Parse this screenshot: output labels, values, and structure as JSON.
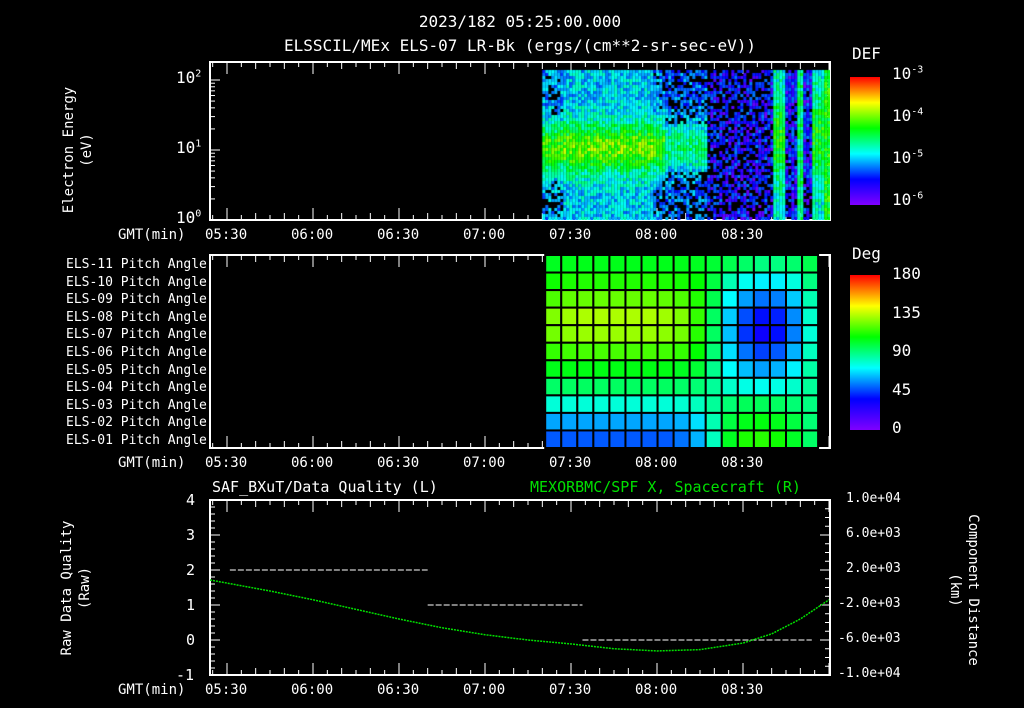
{
  "header": {
    "timestamp": "2023/182 05:25:00.000",
    "subtitle": "ELSSCIL/MEx ELS-07 LR-Bk  (ergs/(cm**2-sr-sec-eV))"
  },
  "time_axis": {
    "label": "GMT(min)",
    "ticks": [
      "05:30",
      "06:00",
      "06:30",
      "07:00",
      "07:30",
      "08:00",
      "08:30"
    ],
    "tick_minutes": [
      330,
      360,
      390,
      420,
      450,
      480,
      510
    ],
    "range_minutes": [
      324,
      540
    ]
  },
  "colors": {
    "axis": "#ffffff",
    "green_series": "#00e000",
    "quality_series": "#ffffff"
  },
  "chart_data": [
    {
      "type": "heatmap",
      "name": "energy-spectrogram",
      "title": "ELSSCIL/MEx ELS-07 LR-Bk  (ergs/(cm**2-sr-sec-eV))",
      "ylabel": [
        "Electron Energy",
        "(eV)"
      ],
      "yscale": "log",
      "ylim": [
        1,
        186
      ],
      "yticks": [
        {
          "base": "10",
          "exp": "0"
        },
        {
          "base": "10",
          "exp": "1"
        },
        {
          "base": "10",
          "exp": "2"
        }
      ],
      "data_start_minute": 440,
      "colorbar": {
        "title": "DEF",
        "ticks": [
          {
            "base": "10",
            "exp": "-3"
          },
          {
            "base": "10",
            "exp": "-4"
          },
          {
            "base": "10",
            "exp": "-5"
          },
          {
            "base": "10",
            "exp": "-6"
          }
        ],
        "range_log": [
          -6.3,
          -3
        ]
      }
    },
    {
      "type": "heatmap",
      "name": "pitch-angle",
      "rows": [
        "ELS-11 Pitch Angle",
        "ELS-10 Pitch Angle",
        "ELS-09 Pitch Angle",
        "ELS-08 Pitch Angle",
        "ELS-07 Pitch Angle",
        "ELS-06 Pitch Angle",
        "ELS-05 Pitch Angle",
        "ELS-04 Pitch Angle",
        "ELS-03 Pitch Angle",
        "ELS-02 Pitch Angle",
        "ELS-01 Pitch Angle"
      ],
      "column_start_minute": 441,
      "column_width_minutes": 5.6,
      "values": [
        [
          95,
          96,
          96,
          96,
          96,
          96,
          96,
          96,
          96,
          95,
          92,
          88,
          84,
          80,
          80,
          83,
          88
        ],
        [
          102,
          104,
          105,
          105,
          105,
          105,
          105,
          104,
          103,
          100,
          90,
          72,
          62,
          58,
          58,
          65,
          80
        ],
        [
          112,
          115,
          116,
          116,
          116,
          116,
          116,
          115,
          112,
          105,
          88,
          60,
          45,
          38,
          40,
          52,
          72
        ],
        [
          120,
          125,
          127,
          127,
          127,
          127,
          127,
          125,
          120,
          108,
          85,
          52,
          32,
          22,
          25,
          42,
          68
        ],
        [
          118,
          122,
          124,
          124,
          124,
          124,
          124,
          122,
          118,
          106,
          85,
          50,
          28,
          18,
          22,
          40,
          66
        ],
        [
          108,
          110,
          111,
          111,
          111,
          111,
          111,
          110,
          108,
          100,
          82,
          55,
          38,
          30,
          34,
          48,
          70
        ],
        [
          96,
          97,
          97,
          97,
          97,
          97,
          97,
          97,
          95,
          92,
          78,
          60,
          50,
          45,
          48,
          58,
          74
        ],
        [
          84,
          85,
          85,
          85,
          85,
          85,
          85,
          85,
          84,
          82,
          76,
          68,
          64,
          62,
          64,
          68,
          76
        ],
        [
          66,
          66,
          66,
          66,
          66,
          66,
          66,
          66,
          67,
          70,
          76,
          82,
          86,
          86,
          85,
          82,
          80
        ],
        [
          46,
          46,
          46,
          46,
          46,
          46,
          46,
          46,
          48,
          55,
          72,
          90,
          96,
          98,
          96,
          90,
          82
        ],
        [
          34,
          34,
          34,
          34,
          34,
          34,
          34,
          34,
          38,
          48,
          70,
          95,
          104,
          106,
          102,
          94,
          84
        ]
      ],
      "colorbar": {
        "title": "Deg",
        "ticks": [
          "180",
          "135",
          "90",
          "45",
          "0"
        ],
        "range": [
          0,
          180
        ]
      }
    },
    {
      "type": "line",
      "name": "data-quality-and-position",
      "left_title": "SAF_BXuT/Data Quality (L)",
      "right_title": "MEXORBMC/SPF X, Spacecraft (R)",
      "ylabel_left": [
        "Raw Data Quality",
        "(Raw)"
      ],
      "ylabel_right": [
        "Component Distance",
        "(km)"
      ],
      "ylim_left": [
        -1,
        4
      ],
      "yticks_left": [
        "4",
        "3",
        "2",
        "1",
        "0",
        "-1"
      ],
      "ylim_right": [
        -10000,
        10000
      ],
      "yticks_right": [
        "1.0e+04",
        "6.0e+03",
        "2.0e+03",
        "-2.0e+03",
        "-6.0e+03",
        "-1.0e+04"
      ],
      "series": [
        {
          "name": "Data Quality",
          "axis": "left",
          "style": "dashed",
          "segments": [
            {
              "x_minutes": [
                331,
                400
              ],
              "y": 2
            },
            {
              "x_minutes": [
                400,
                454
              ],
              "y": 1
            },
            {
              "x_minutes": [
                454,
                534
              ],
              "y": 0
            }
          ]
        },
        {
          "name": "SPF X",
          "axis": "right",
          "style": "dotted",
          "x_minutes": [
            324,
            345,
            360,
            375,
            390,
            405,
            420,
            435,
            450,
            465,
            480,
            495,
            510,
            520,
            530,
            540
          ],
          "y": [
            860,
            -400,
            -1400,
            -2500,
            -3600,
            -4600,
            -5400,
            -6000,
            -6450,
            -7000,
            -7250,
            -7100,
            -6350,
            -5300,
            -3600,
            -1400
          ]
        }
      ]
    }
  ]
}
